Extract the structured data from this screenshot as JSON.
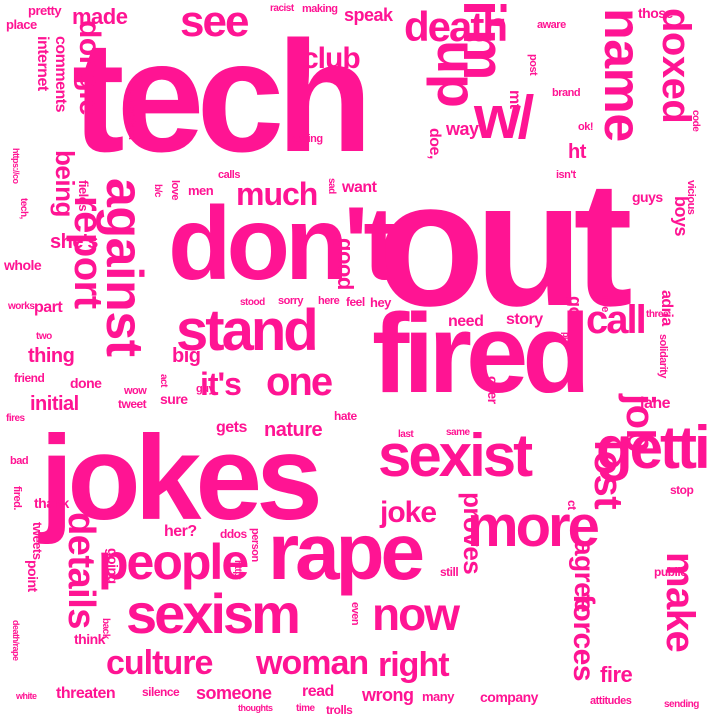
{
  "cloud": {
    "color": "#ff1493",
    "background": "#ffffff",
    "words": [
      "tech",
      "out",
      "jokes",
      "fired",
      "don't",
      "rape",
      "more",
      "sexist",
      "getting",
      "i'm",
      "against",
      "stand",
      "up",
      "w/",
      "sexism",
      "people",
      "name",
      "death",
      "see",
      "report",
      "doxed",
      "job",
      "call",
      "lost",
      "make",
      "one",
      "woman",
      "culture",
      "now",
      "details",
      "much",
      "agree",
      "it's",
      "forces",
      "right",
      "proves",
      "joke",
      "club",
      "dongle",
      "made",
      "pretty",
      "place",
      "internet",
      "comments",
      "being",
      "speak",
      "making",
      "racist",
      "aware",
      "those",
      "post",
      "brand",
      "ok!",
      "way",
      "ht",
      "mt",
      "doe,",
      "understand",
      "daring",
      "https://co",
      "tech,",
      "fields",
      "b/c",
      "love",
      "men",
      "calls",
      "sad",
      "want",
      "good",
      "hey",
      "isn't",
      "guys",
      "boys",
      "vicious",
      "code",
      "whole",
      "part",
      "works",
      "two",
      "thing",
      "she's",
      "big",
      "initial",
      "friend",
      "done",
      "wow",
      "tweet",
      "sure",
      "guy",
      "gets",
      "nature",
      "need",
      "story",
      "go",
      "i've",
      "put",
      "over",
      "three",
      "adria",
      "solidarity",
      "jane",
      "hate",
      "last",
      "same",
      "stood",
      "sorry",
      "here",
      "feel",
      "act",
      "fires",
      "bad",
      "fired.",
      "thank",
      "tweets",
      "point",
      "going",
      "her?",
      "ddos",
      "person",
      "http:",
      "threaten",
      "silence",
      "someone",
      "read",
      "wrong",
      "many",
      "company",
      "fire",
      "attitudes",
      "sending",
      "thoughts",
      "time",
      "trolls",
      "white",
      "death/rape",
      "back",
      "think",
      "even",
      "still",
      "stop",
      "public",
      "ct"
    ]
  }
}
